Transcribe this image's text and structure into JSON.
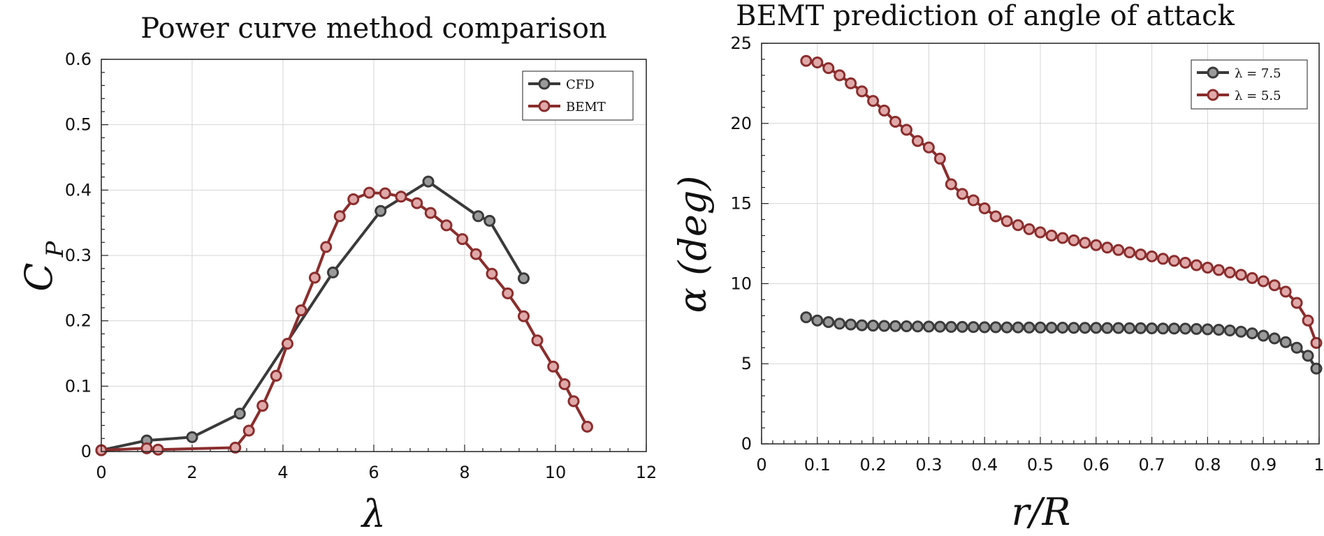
{
  "chart_data": [
    {
      "type": "line",
      "title": "Power curve method comparison",
      "xlabel": "λ",
      "ylabel_main": "C",
      "ylabel_sub": "P",
      "xlim": [
        0,
        12
      ],
      "ylim": [
        0,
        0.6
      ],
      "xticks": [
        0,
        2,
        4,
        6,
        8,
        10,
        12
      ],
      "xtick_labels": [
        "0",
        "2",
        "4",
        "6",
        "8",
        "10",
        "12"
      ],
      "yticks": [
        0,
        0.1,
        0.2,
        0.3,
        0.4,
        0.5,
        0.6
      ],
      "ytick_labels": [
        "0",
        "0.1",
        "0.2",
        "0.3",
        "0.4",
        "0.5",
        "0.6"
      ],
      "grid": true,
      "legend_position": "top-right",
      "series": [
        {
          "name": "CFD",
          "color": "#3a3a3a",
          "marker_fill": "#9a9a9a",
          "x": [
            0,
            1,
            2,
            3.05,
            5.1,
            6.15,
            7.2,
            8.3,
            8.55,
            9.3
          ],
          "y": [
            0.002,
            0.017,
            0.022,
            0.058,
            0.274,
            0.368,
            0.413,
            0.36,
            0.353,
            0.265
          ]
        },
        {
          "name": "BEMT",
          "color": "#8b2d2d",
          "marker_fill": "#e0a9a9",
          "x": [
            0,
            1,
            1.25,
            2.95,
            3.25,
            3.55,
            3.85,
            4.1,
            4.4,
            4.7,
            4.95,
            5.25,
            5.55,
            5.9,
            6.25,
            6.6,
            6.95,
            7.25,
            7.6,
            7.95,
            8.25,
            8.6,
            8.95,
            9.3,
            9.6,
            9.95,
            10.2,
            10.4,
            10.7
          ],
          "y": [
            0.002,
            0.005,
            0.003,
            0.006,
            0.032,
            0.07,
            0.116,
            0.165,
            0.216,
            0.266,
            0.313,
            0.36,
            0.386,
            0.396,
            0.395,
            0.39,
            0.38,
            0.365,
            0.346,
            0.325,
            0.302,
            0.272,
            0.242,
            0.207,
            0.17,
            0.13,
            0.103,
            0.077,
            0.038
          ]
        }
      ]
    },
    {
      "type": "line",
      "title": "BEMT prediction of angle of attack",
      "xlabel": "r/R",
      "ylabel": "α (deg)",
      "xlim": [
        0,
        1
      ],
      "ylim": [
        0,
        25
      ],
      "xticks": [
        0,
        0.1,
        0.2,
        0.3,
        0.4,
        0.5,
        0.6,
        0.7,
        0.8,
        0.9,
        1
      ],
      "xtick_labels": [
        "0",
        "0.1",
        "0.2",
        "0.3",
        "0.4",
        "0.5",
        "0.6",
        "0.7",
        "0.8",
        "0.9",
        "1"
      ],
      "yticks": [
        0,
        5,
        10,
        15,
        20,
        25
      ],
      "ytick_labels": [
        "0",
        "5",
        "10",
        "15",
        "20",
        "25"
      ],
      "grid": true,
      "legend_position": "top-right",
      "series": [
        {
          "name": "λ = 7.5",
          "color": "#3a3a3a",
          "marker_fill": "#9a9a9a",
          "x": [
            0.08,
            0.1,
            0.12,
            0.14,
            0.16,
            0.18,
            0.2,
            0.22,
            0.24,
            0.26,
            0.28,
            0.3,
            0.32,
            0.34,
            0.36,
            0.38,
            0.4,
            0.42,
            0.44,
            0.46,
            0.48,
            0.5,
            0.52,
            0.54,
            0.56,
            0.58,
            0.6,
            0.62,
            0.64,
            0.66,
            0.68,
            0.7,
            0.72,
            0.74,
            0.76,
            0.78,
            0.8,
            0.82,
            0.84,
            0.86,
            0.88,
            0.9,
            0.92,
            0.94,
            0.96,
            0.98,
            0.995
          ],
          "y": [
            7.9,
            7.7,
            7.6,
            7.5,
            7.45,
            7.4,
            7.38,
            7.36,
            7.35,
            7.34,
            7.33,
            7.32,
            7.31,
            7.3,
            7.3,
            7.29,
            7.28,
            7.28,
            7.27,
            7.27,
            7.26,
            7.26,
            7.25,
            7.25,
            7.24,
            7.24,
            7.24,
            7.23,
            7.23,
            7.22,
            7.22,
            7.21,
            7.2,
            7.2,
            7.19,
            7.17,
            7.15,
            7.12,
            7.08,
            7.0,
            6.9,
            6.75,
            6.58,
            6.35,
            6.0,
            5.5,
            4.7
          ]
        },
        {
          "name": "λ = 5.5",
          "color": "#8b2d2d",
          "marker_fill": "#e0a9a9",
          "x": [
            0.08,
            0.1,
            0.12,
            0.14,
            0.16,
            0.18,
            0.2,
            0.22,
            0.24,
            0.26,
            0.28,
            0.3,
            0.32,
            0.34,
            0.36,
            0.38,
            0.4,
            0.42,
            0.44,
            0.46,
            0.48,
            0.5,
            0.52,
            0.54,
            0.56,
            0.58,
            0.6,
            0.62,
            0.64,
            0.66,
            0.68,
            0.7,
            0.72,
            0.74,
            0.76,
            0.78,
            0.8,
            0.82,
            0.84,
            0.86,
            0.88,
            0.9,
            0.92,
            0.94,
            0.96,
            0.98,
            0.995
          ],
          "y": [
            23.9,
            23.8,
            23.45,
            23.0,
            22.5,
            22.0,
            21.4,
            20.8,
            20.1,
            19.6,
            18.9,
            18.5,
            17.8,
            16.2,
            15.6,
            15.2,
            14.7,
            14.2,
            13.9,
            13.65,
            13.4,
            13.2,
            13.0,
            12.85,
            12.7,
            12.55,
            12.4,
            12.25,
            12.1,
            11.95,
            11.82,
            11.7,
            11.55,
            11.42,
            11.3,
            11.15,
            11.0,
            10.85,
            10.7,
            10.55,
            10.35,
            10.15,
            9.9,
            9.5,
            8.8,
            7.7,
            6.3
          ]
        }
      ]
    }
  ]
}
